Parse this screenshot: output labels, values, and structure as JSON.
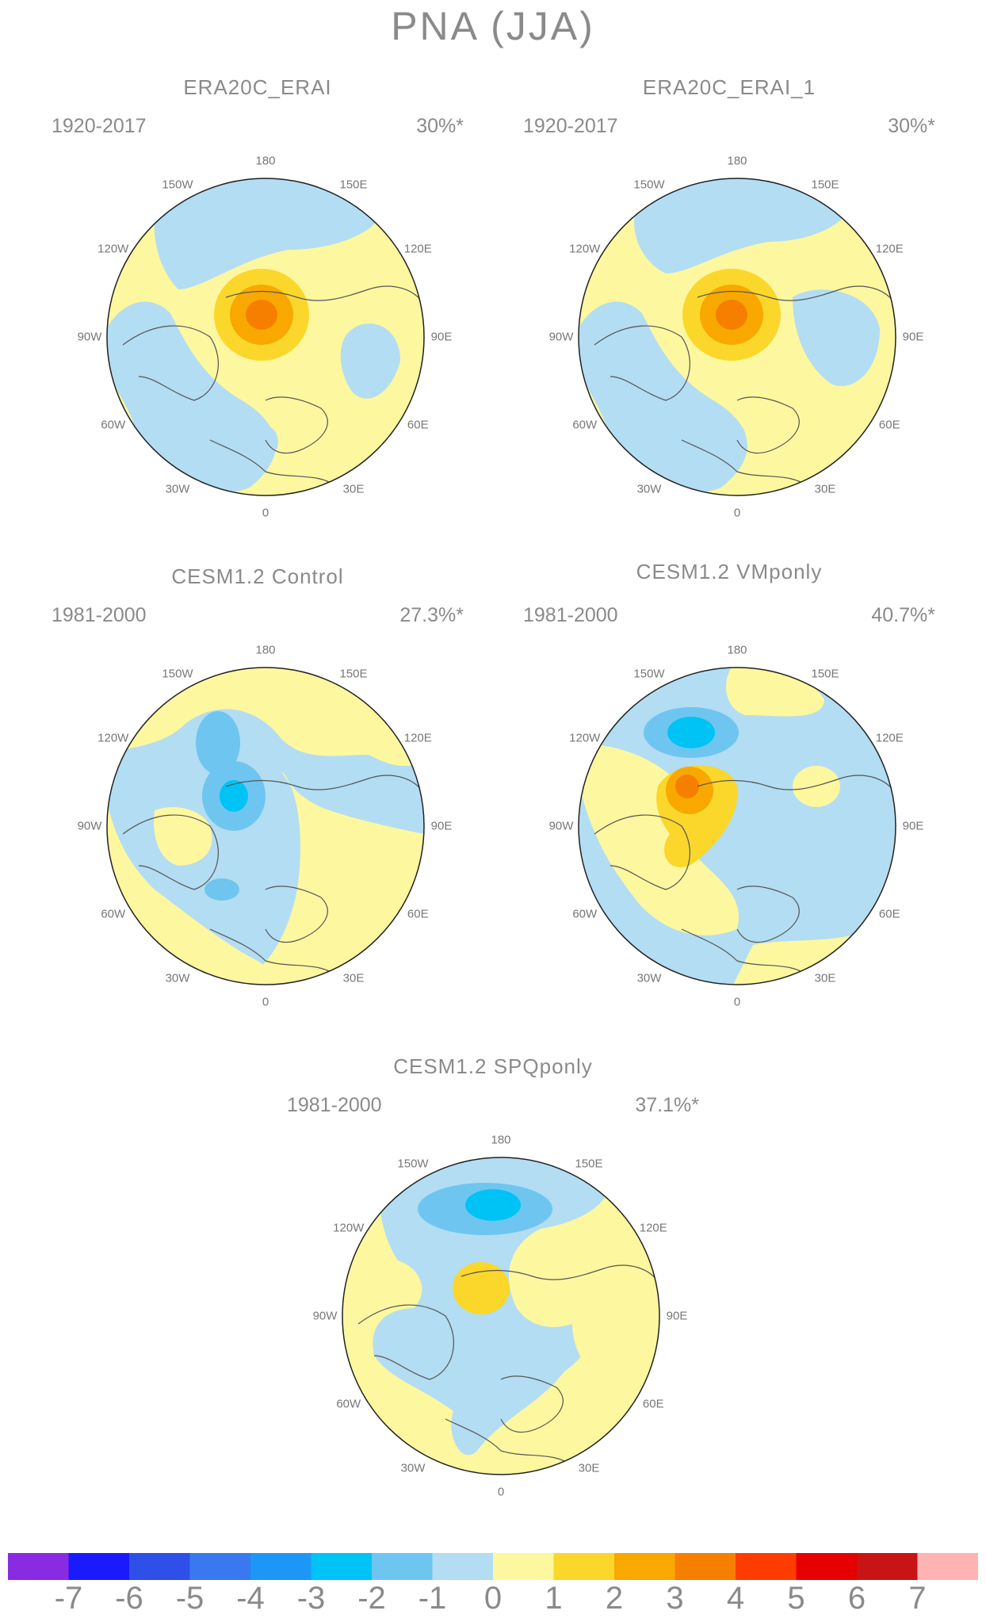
{
  "main_title": "PNA (JJA)",
  "panels": [
    {
      "title": "ERA20C_ERAI",
      "period": "1920-2017",
      "percent": "30%*"
    },
    {
      "title": "ERA20C_ERAI_1",
      "period": "1920-2017",
      "percent": "30%*"
    },
    {
      "title": "CESM1.2  Control",
      "period": "1981-2000",
      "percent": "27.3%*"
    },
    {
      "title": "CESM1.2  VMponly",
      "period": "1981-2000",
      "percent": "40.7%*"
    },
    {
      "title": "CESM1.2  SPQponly",
      "period": "1981-2000",
      "percent": "37.1%*"
    }
  ],
  "longitude_labels": [
    "180",
    "150E",
    "120E",
    "90E",
    "60E",
    "30E",
    "0",
    "30W",
    "60W",
    "90W",
    "120W",
    "150W"
  ],
  "colorbar": {
    "labels": [
      "-7",
      "-6",
      "-5",
      "-4",
      "-3",
      "-2",
      "-1",
      "0",
      "1",
      "2",
      "3",
      "4",
      "5",
      "6",
      "7"
    ],
    "colors": [
      "#8a2be2",
      "#1a1aff",
      "#2e4fe8",
      "#3a78ef",
      "#1e96f5",
      "#00c3f5",
      "#6ec6f0",
      "#b3ddf2",
      "#fdf7a0",
      "#fbd72b",
      "#f9a800",
      "#f77f00",
      "#ff3c00",
      "#e60000",
      "#c81414",
      "#ffb3b3"
    ]
  },
  "palette": {
    "neg1": "#b3ddf2",
    "neg2": "#6ec6f0",
    "neg3": "#00c3f5",
    "pos0": "#fdf7a0",
    "pos1": "#fbd72b",
    "pos2": "#f9a800",
    "pos3": "#f77f00",
    "coast": "#555555"
  }
}
